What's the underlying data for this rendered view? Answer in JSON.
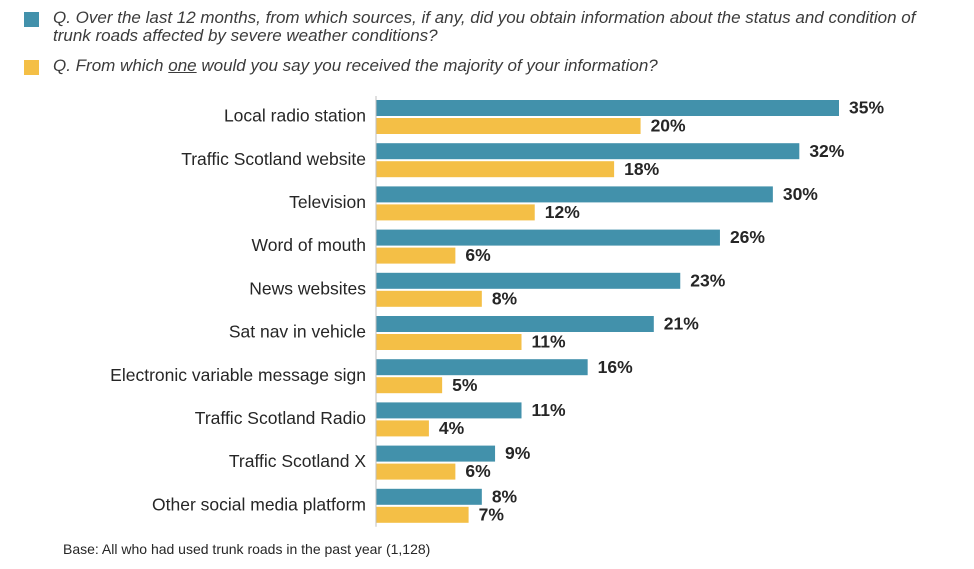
{
  "legend": {
    "item1": "Q. Over the last 12 months, from which sources, if any, did you obtain information about the status and condition of trunk roads affected by severe weather conditions?",
    "item2_pre": "Q. From which ",
    "item2_em": "one",
    "item2_post": " would you say you received the majority of your information?"
  },
  "footnote": "Base: All who had used trunk roads in the past year (1,128)",
  "colors": {
    "series1": "#4291ab",
    "series2": "#f4bf46"
  },
  "chart_data": {
    "type": "bar",
    "orientation": "horizontal",
    "categories": [
      "Local radio station",
      "Traffic Scotland website",
      "Television",
      "Word of mouth",
      "News websites",
      "Sat nav in vehicle",
      "Electronic variable message sign",
      "Traffic Scotland Radio",
      "Traffic Scotland X",
      "Other social media platform"
    ],
    "series": [
      {
        "values": [
          35,
          32,
          30,
          26,
          23,
          21,
          16,
          11,
          9,
          8
        ]
      },
      {
        "values": [
          20,
          18,
          12,
          6,
          8,
          11,
          5,
          4,
          6,
          7
        ]
      }
    ],
    "value_suffix": "%",
    "xlim": [
      0,
      35
    ],
    "grid": false,
    "legend_position": "top"
  }
}
